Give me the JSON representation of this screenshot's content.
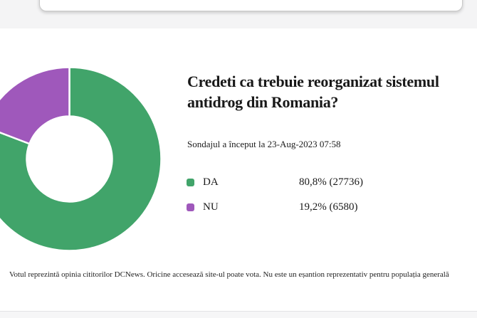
{
  "poll": {
    "title": "Credeti ca trebuie reorganizat sistemul antidrog din Romania?",
    "title_lines": [
      "Credeti ca trebuie reorganizat sistemul",
      "antidrog din Romania?"
    ],
    "subtitle": "Sondajul a început la 23-Aug-2023 07:58",
    "footer": "Votul reprezintă opinia cititorilor DCNews. Oricine accesează site-ul poate vota. Nu este un eșantion reprezentativ pentru populația generală"
  },
  "chart_data": {
    "type": "pie",
    "subtype": "donut",
    "title": "Credeti ca trebuie reorganizat sistemul antidrog din Romania?",
    "categories": [
      "DA",
      "NU"
    ],
    "values": [
      80.8,
      19.2
    ],
    "counts": [
      27736,
      6580
    ],
    "value_labels": [
      "80,8% (27736)",
      "19,2% (6580)"
    ],
    "colors": [
      "#41a46a",
      "#9f58bb"
    ],
    "start_angle_deg": 0,
    "direction": "clockwise",
    "inner_radius_ratio": 0.465,
    "slice_border_color": "#ffffff",
    "legend_position": "right"
  }
}
